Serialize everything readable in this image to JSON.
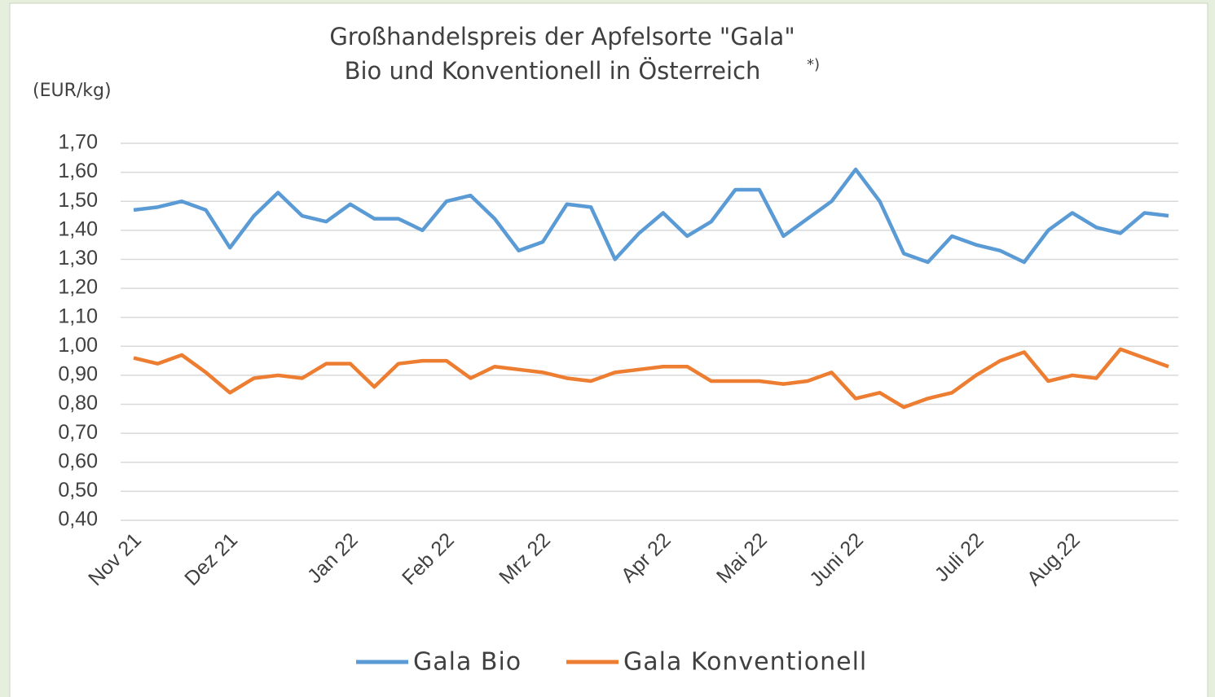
{
  "chart_data": {
    "type": "line",
    "title": [
      "Großhandelspreis der Apfelsorte \"Gala\"",
      "Bio und Konventionell in Österreich"
    ],
    "title_marker": "*)",
    "y_axis_label": "(EUR/kg)",
    "categories": [
      "Nov 21",
      null,
      null,
      null,
      "Dez 21",
      null,
      null,
      null,
      null,
      "Jan 22",
      null,
      null,
      null,
      "Feb 22",
      null,
      null,
      null,
      "Mrz 22",
      null,
      null,
      null,
      null,
      "Apr 22",
      null,
      null,
      null,
      "Mai 22",
      null,
      null,
      null,
      "Juni 22",
      null,
      null,
      null,
      null,
      "Juli 22",
      null,
      null,
      null,
      "Aug.22",
      null,
      null,
      null,
      null
    ],
    "series": [
      {
        "name": "Gala Bio",
        "color": "#5b9bd5",
        "values": [
          1.47,
          1.48,
          1.5,
          1.47,
          1.34,
          1.45,
          1.53,
          1.45,
          1.43,
          1.49,
          1.44,
          1.44,
          1.4,
          1.5,
          1.52,
          1.44,
          1.33,
          1.36,
          1.49,
          1.48,
          1.3,
          1.39,
          1.46,
          1.38,
          1.43,
          1.54,
          1.54,
          1.38,
          1.44,
          1.5,
          1.61,
          1.5,
          1.32,
          1.29,
          1.38,
          1.35,
          1.33,
          1.29,
          1.4,
          1.46,
          1.41,
          1.39,
          1.46,
          1.45
        ]
      },
      {
        "name": "Gala Konventionell",
        "color": "#ed7d31",
        "values": [
          0.96,
          0.94,
          0.97,
          0.91,
          0.84,
          0.89,
          0.9,
          0.89,
          0.94,
          0.94,
          0.86,
          0.94,
          0.95,
          0.95,
          0.89,
          0.93,
          0.92,
          0.91,
          0.89,
          0.88,
          0.91,
          0.92,
          0.93,
          0.93,
          0.88,
          0.88,
          0.88,
          0.87,
          0.88,
          0.91,
          0.82,
          0.84,
          0.79,
          0.82,
          0.84,
          0.9,
          0.95,
          0.98,
          0.88,
          0.9,
          0.89,
          0.99,
          0.96,
          0.93
        ]
      }
    ],
    "ylim": [
      0.4,
      1.7
    ],
    "yticks": [
      {
        "value": 0.4,
        "label": "0,40"
      },
      {
        "value": 0.5,
        "label": "0,50"
      },
      {
        "value": 0.6,
        "label": "0,60"
      },
      {
        "value": 0.7,
        "label": "0,70"
      },
      {
        "value": 0.8,
        "label": "0,80"
      },
      {
        "value": 0.9,
        "label": "0,90"
      },
      {
        "value": 1.0,
        "label": "1,00"
      },
      {
        "value": 1.1,
        "label": "1,10"
      },
      {
        "value": 1.2,
        "label": "1,20"
      },
      {
        "value": 1.3,
        "label": "1,30"
      },
      {
        "value": 1.4,
        "label": "1,40"
      },
      {
        "value": 1.5,
        "label": "1,50"
      },
      {
        "value": 1.6,
        "label": "1,60"
      },
      {
        "value": 1.7,
        "label": "1,70"
      }
    ],
    "grid": true,
    "legend": "bottom"
  }
}
